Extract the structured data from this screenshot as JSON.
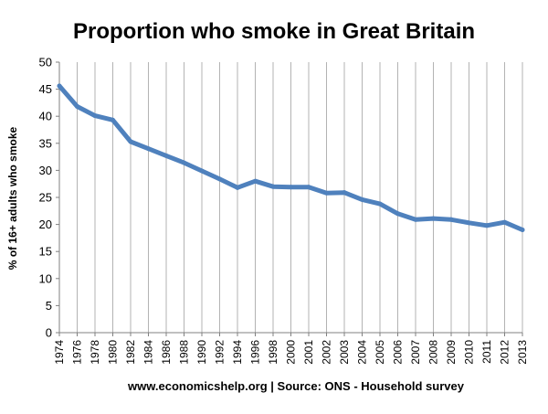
{
  "chart_data": {
    "type": "line",
    "title": "Proportion who smoke in Great Britain",
    "xlabel": "",
    "ylabel": "% of 16+ adults who smoke",
    "source_note": "www.economicshelp.org | Source: ONS - Household survey",
    "ylim": [
      0,
      50
    ],
    "yticks": [
      0,
      5,
      10,
      15,
      20,
      25,
      30,
      35,
      40,
      45,
      50
    ],
    "grid": "vertical",
    "legend": "none",
    "line_color": "#4f81bd",
    "categories": [
      "1974",
      "1976",
      "1978",
      "1980",
      "1982",
      "1984",
      "1986",
      "1988",
      "1990",
      "1992",
      "1994",
      "1996",
      "1998",
      "2000",
      "2001",
      "2002",
      "2003",
      "2004",
      "2005",
      "2006",
      "2007",
      "2008",
      "2009",
      "2010",
      "2011",
      "2012",
      "2013"
    ],
    "series": [
      {
        "values": [
          45.6,
          41.8,
          40.1,
          39.3,
          35.3,
          34.0,
          32.7,
          31.4,
          29.9,
          28.4,
          26.8,
          28.0,
          27.0,
          26.9,
          26.9,
          25.8,
          25.9,
          24.6,
          23.8,
          22.0,
          20.9,
          21.1,
          20.9,
          20.3,
          19.8,
          20.4,
          19.0
        ]
      }
    ]
  }
}
